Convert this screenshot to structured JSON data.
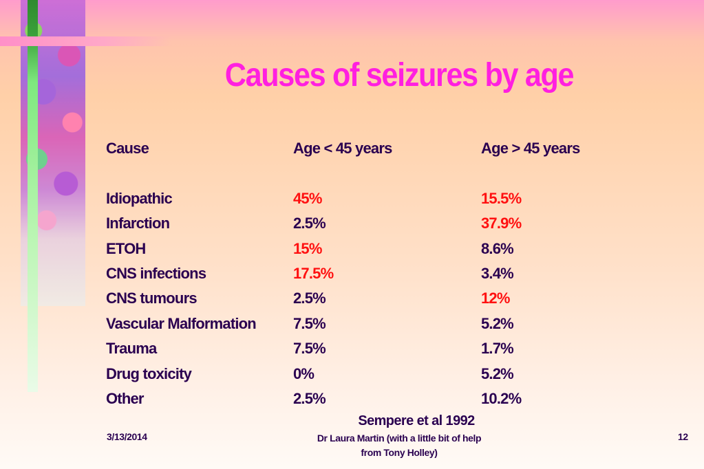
{
  "slide": {
    "title": "Causes of seizures by age",
    "columns": [
      "Cause",
      "Age < 45 years",
      "Age > 45 years"
    ],
    "rows": [
      {
        "cause": "Idiopathic",
        "under45": "45%",
        "over45": "15.5%",
        "under45_highlight": true,
        "over45_highlight": true
      },
      {
        "cause": "Infarction",
        "under45": "2.5%",
        "over45": "37.9%",
        "under45_highlight": false,
        "over45_highlight": true
      },
      {
        "cause": "ETOH",
        "under45": "15%",
        "over45": "8.6%",
        "under45_highlight": true,
        "over45_highlight": false
      },
      {
        "cause": "CNS infections",
        "under45": "17.5%",
        "over45": "3.4%",
        "under45_highlight": true,
        "over45_highlight": false
      },
      {
        "cause": "CNS tumours",
        "under45": "2.5%",
        "over45": "12%",
        "under45_highlight": false,
        "over45_highlight": true
      },
      {
        "cause": "Vascular Malformation",
        "under45": "7.5%",
        "over45": "5.2%",
        "under45_highlight": false,
        "over45_highlight": false
      },
      {
        "cause": "Trauma",
        "under45": "7.5%",
        "over45": "1.7%",
        "under45_highlight": false,
        "over45_highlight": false
      },
      {
        "cause": "Drug toxicity",
        "under45": "0%",
        "over45": "5.2%",
        "under45_highlight": false,
        "over45_highlight": false
      },
      {
        "cause": "Other",
        "under45": "2.5%",
        "over45": "10.2%",
        "under45_highlight": false,
        "over45_highlight": false
      }
    ],
    "citation": "Sempere et al 1992"
  },
  "footer": {
    "date": "3/13/2014",
    "author_line1": "Dr Laura Martin (with a little bit of help",
    "author_line2": "from Tony Holley)",
    "page_number": "12"
  },
  "colors": {
    "title": "#ff1fe0",
    "text": "#2a0050",
    "highlight": "#ff1010"
  }
}
